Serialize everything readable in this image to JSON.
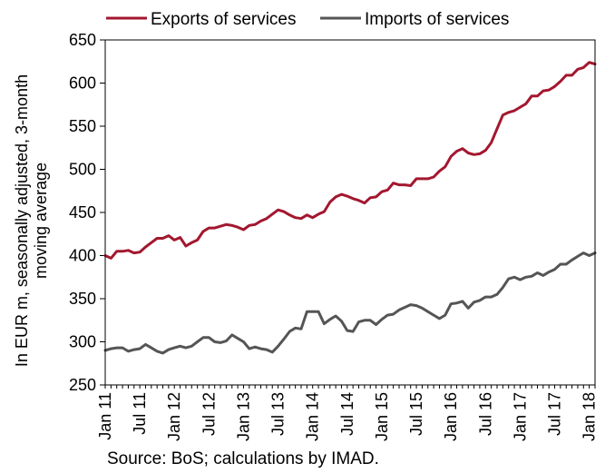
{
  "chart_data": {
    "type": "line",
    "title": "",
    "ylabel_line1": "In EUR m, seasonally adjusted, 3-month",
    "ylabel_line2": "moving average",
    "xlabel": "",
    "source": "Source: BoS; calculations by IMAD.",
    "ylim": [
      250,
      650
    ],
    "yticks": [
      250,
      300,
      350,
      400,
      450,
      500,
      550,
      600,
      650
    ],
    "x_start": "Jan 11",
    "x_end": "Jan 18",
    "xtick_labels": [
      "Jan 11",
      "Jul 11",
      "Jan 12",
      "Jul 12",
      "Jan 13",
      "Jul 13",
      "Jan 14",
      "Jul 14",
      "Jan 15",
      "Jul 15",
      "Jan 16",
      "Jul 16",
      "Jan 17",
      "Jul 17",
      "Jan 18"
    ],
    "legend_position": "top",
    "grid": false,
    "series": [
      {
        "name": "Exports of services",
        "color": "#a3172f",
        "values": [
          400,
          397,
          405,
          405,
          406,
          403,
          404,
          410,
          415,
          420,
          420,
          423,
          418,
          421,
          411,
          415,
          418,
          428,
          432,
          432,
          434,
          436,
          435,
          433,
          430,
          435,
          436,
          440,
          443,
          448,
          453,
          451,
          447,
          444,
          443,
          447,
          444,
          448,
          451,
          462,
          468,
          471,
          469,
          466,
          464,
          461,
          467,
          468,
          474,
          476,
          484,
          482,
          482,
          481,
          489,
          489,
          489,
          491,
          498,
          503,
          515,
          521,
          524,
          519,
          517,
          518,
          522,
          531,
          547,
          563,
          566,
          568,
          572,
          576,
          585,
          585,
          591,
          592,
          596,
          602,
          609,
          609,
          616,
          618,
          624,
          622
        ]
      },
      {
        "name": "Imports of services",
        "color": "#555555",
        "values": [
          290,
          292,
          293,
          293,
          289,
          291,
          292,
          297,
          293,
          289,
          287,
          291,
          293,
          295,
          293,
          295,
          300,
          305,
          305,
          300,
          299,
          301,
          308,
          304,
          300,
          292,
          294,
          292,
          291,
          288,
          295,
          303,
          312,
          316,
          315,
          335,
          335,
          335,
          321,
          326,
          330,
          324,
          313,
          312,
          323,
          325,
          325,
          320,
          326,
          331,
          332,
          337,
          340,
          343,
          342,
          339,
          335,
          331,
          327,
          331,
          344,
          345,
          347,
          339,
          346,
          348,
          352,
          352,
          355,
          363,
          373,
          375,
          372,
          375,
          376,
          380,
          377,
          381,
          384,
          390,
          390,
          395,
          399,
          403,
          400,
          403
        ]
      }
    ]
  }
}
